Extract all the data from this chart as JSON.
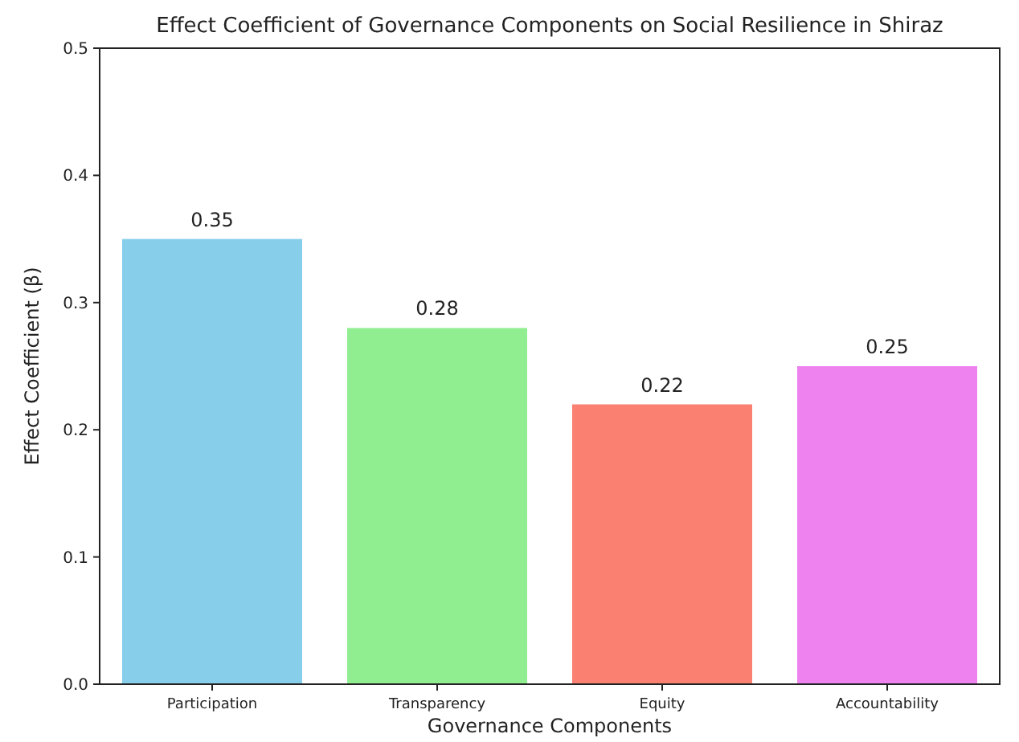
{
  "chart_data": {
    "type": "bar",
    "title": "Effect Coefficient of Governance Components on Social Resilience in Shiraz",
    "xlabel": "Governance Components",
    "ylabel": "Effect Coefficient (β)",
    "categories": [
      "Participation",
      "Transparency",
      "Equity",
      "Accountability"
    ],
    "values": [
      0.35,
      0.28,
      0.22,
      0.25
    ],
    "colors": [
      "#87ceeb",
      "#90ee90",
      "#fa8072",
      "#ee82ee"
    ],
    "ylim": [
      0,
      0.5
    ],
    "yticks": [
      {
        "value": 0,
        "label": "0.0"
      },
      0.1,
      0.2,
      0.3,
      0.4,
      0.5
    ],
    "data_labels": true
  }
}
